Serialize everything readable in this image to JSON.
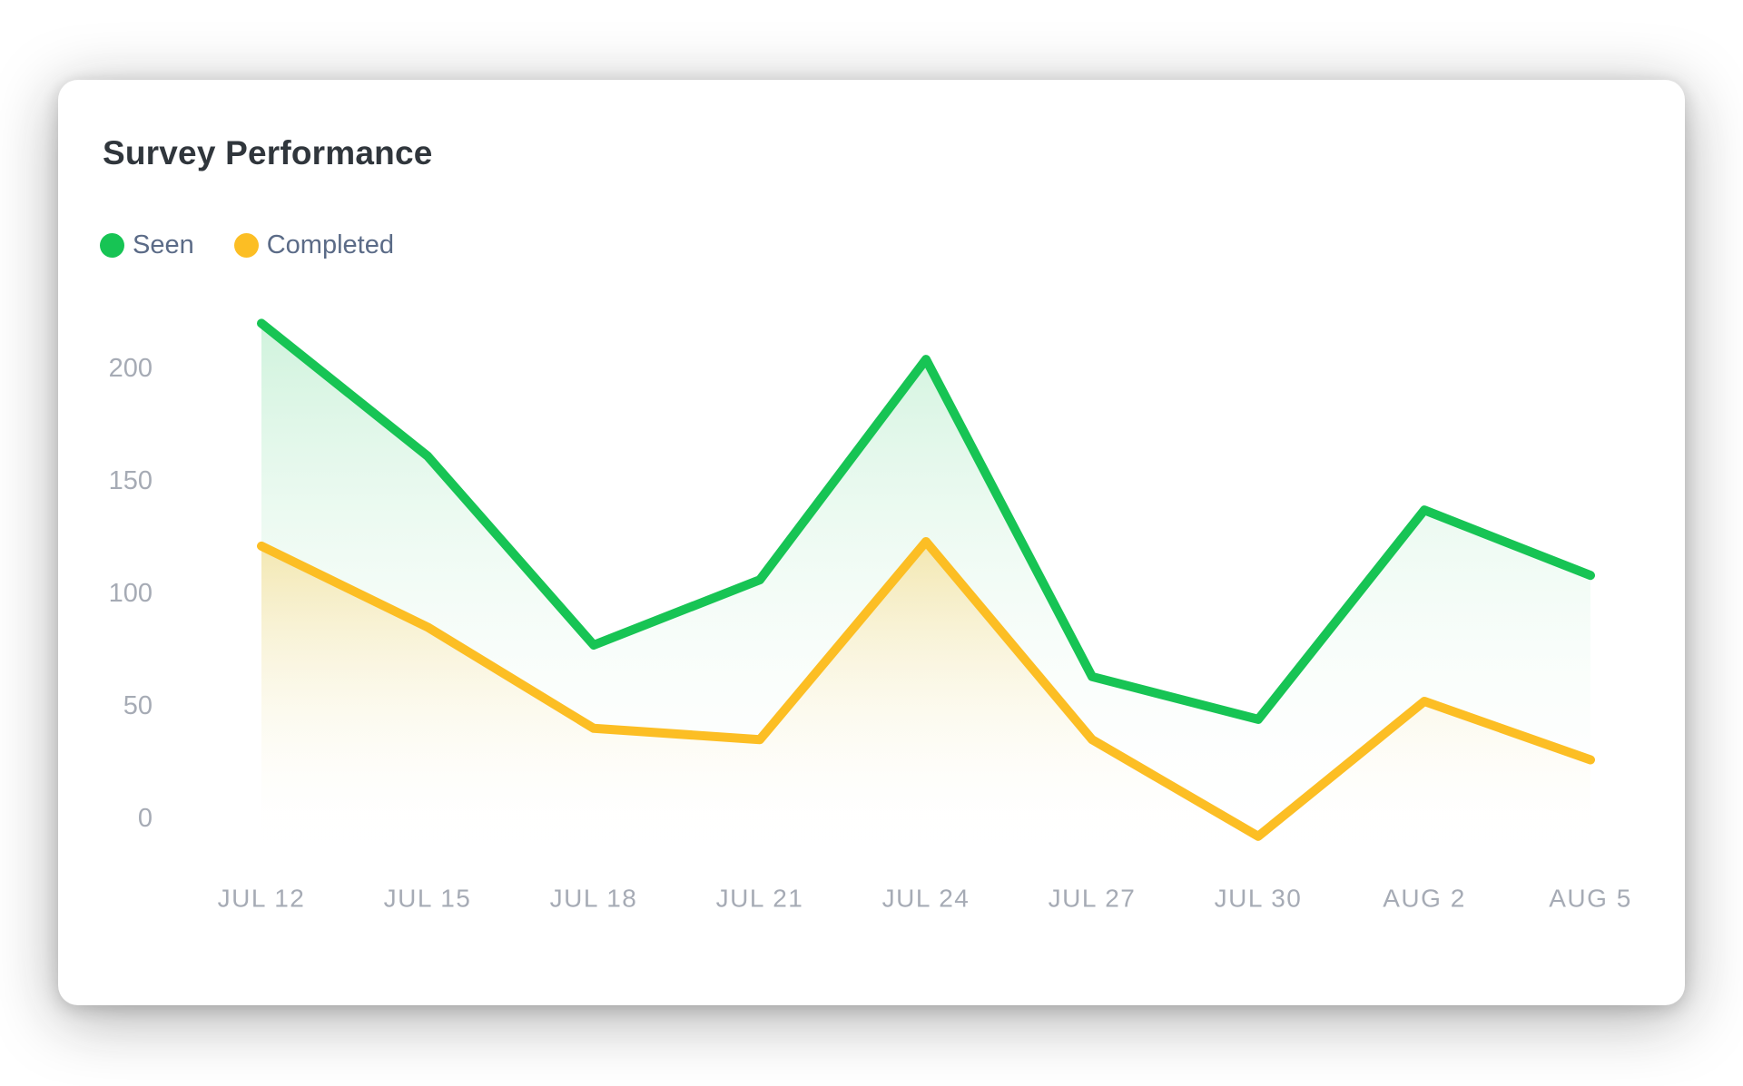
{
  "card": {
    "title": "Survey Performance",
    "legend": [
      {
        "label": "Seen",
        "color": "#17c454"
      },
      {
        "label": "Completed",
        "color": "#fcbe24"
      }
    ]
  },
  "chart_data": {
    "type": "line",
    "title": "Survey Performance",
    "categories": [
      "JUL 12",
      "JUL 15",
      "JUL 18",
      "JUL 21",
      "JUL 24",
      "JUL 27",
      "JUL 30",
      "AUG 2",
      "AUG 5"
    ],
    "series": [
      {
        "name": "Seen",
        "color": "#17c454",
        "fill_color": "rgba(34,197,94,0.22)",
        "values": [
          220,
          161,
          77,
          106,
          204,
          63,
          44,
          137,
          108
        ]
      },
      {
        "name": "Completed",
        "color": "#fcbe24",
        "fill_color": "rgba(252,190,36,0.34)",
        "values": [
          121,
          85,
          40,
          35,
          123,
          35,
          -8,
          52,
          26
        ]
      }
    ],
    "xlabel": "",
    "ylabel": "",
    "yticks": [
      0,
      50,
      100,
      150,
      200
    ],
    "ylim": [
      -25,
      235
    ],
    "grid": false,
    "area_fill": true,
    "legend_position": "top-left"
  }
}
